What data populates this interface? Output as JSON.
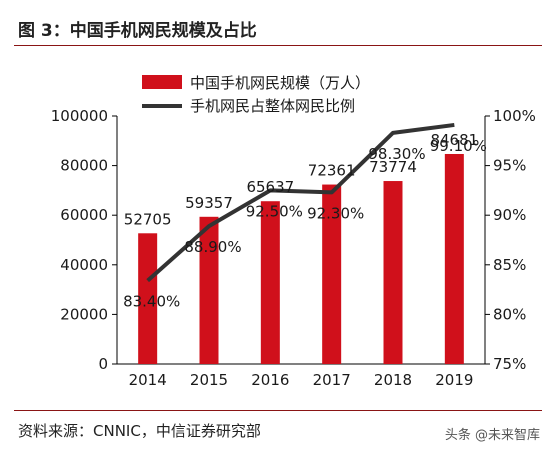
{
  "figure": {
    "title": "图 3：中国手机网民规模及占比",
    "source": "资料来源：CNNIC，中信证券研究部",
    "watermark": "头条 @未来智库"
  },
  "colors": {
    "bar": "#d0101b",
    "line": "#333333",
    "rule": "#8a1515"
  },
  "chart_data": {
    "type": "bar",
    "categories": [
      "2014",
      "2015",
      "2016",
      "2017",
      "2018",
      "2019"
    ],
    "series": [
      {
        "name": "中国手机网民规模（万人）",
        "type": "bar",
        "axis": "left",
        "values": [
          52705,
          59357,
          65637,
          72361,
          73774,
          84681
        ],
        "labels": [
          "52705",
          "59357",
          "65637",
          "72361",
          "73774",
          "84681"
        ]
      },
      {
        "name": "手机网民占整体网民比例",
        "type": "line",
        "axis": "right",
        "values": [
          83.4,
          88.9,
          92.5,
          92.3,
          98.3,
          99.1
        ],
        "labels": [
          "83.40%",
          "88.90%",
          "92.50%",
          "92.30%",
          "98.30%",
          "99.10%"
        ]
      }
    ],
    "y_left": {
      "ylim": [
        0,
        100000
      ],
      "ticks": [
        0,
        20000,
        40000,
        60000,
        80000,
        100000
      ],
      "tick_labels": [
        "0",
        "20000",
        "40000",
        "60000",
        "80000",
        "100000"
      ]
    },
    "y_right": {
      "ylim": [
        75,
        100
      ],
      "ticks": [
        75,
        80,
        85,
        90,
        95,
        100
      ],
      "tick_labels": [
        "75%",
        "80%",
        "85%",
        "90%",
        "95%",
        "100%"
      ]
    },
    "grid": false,
    "legend_position": "top-center"
  }
}
